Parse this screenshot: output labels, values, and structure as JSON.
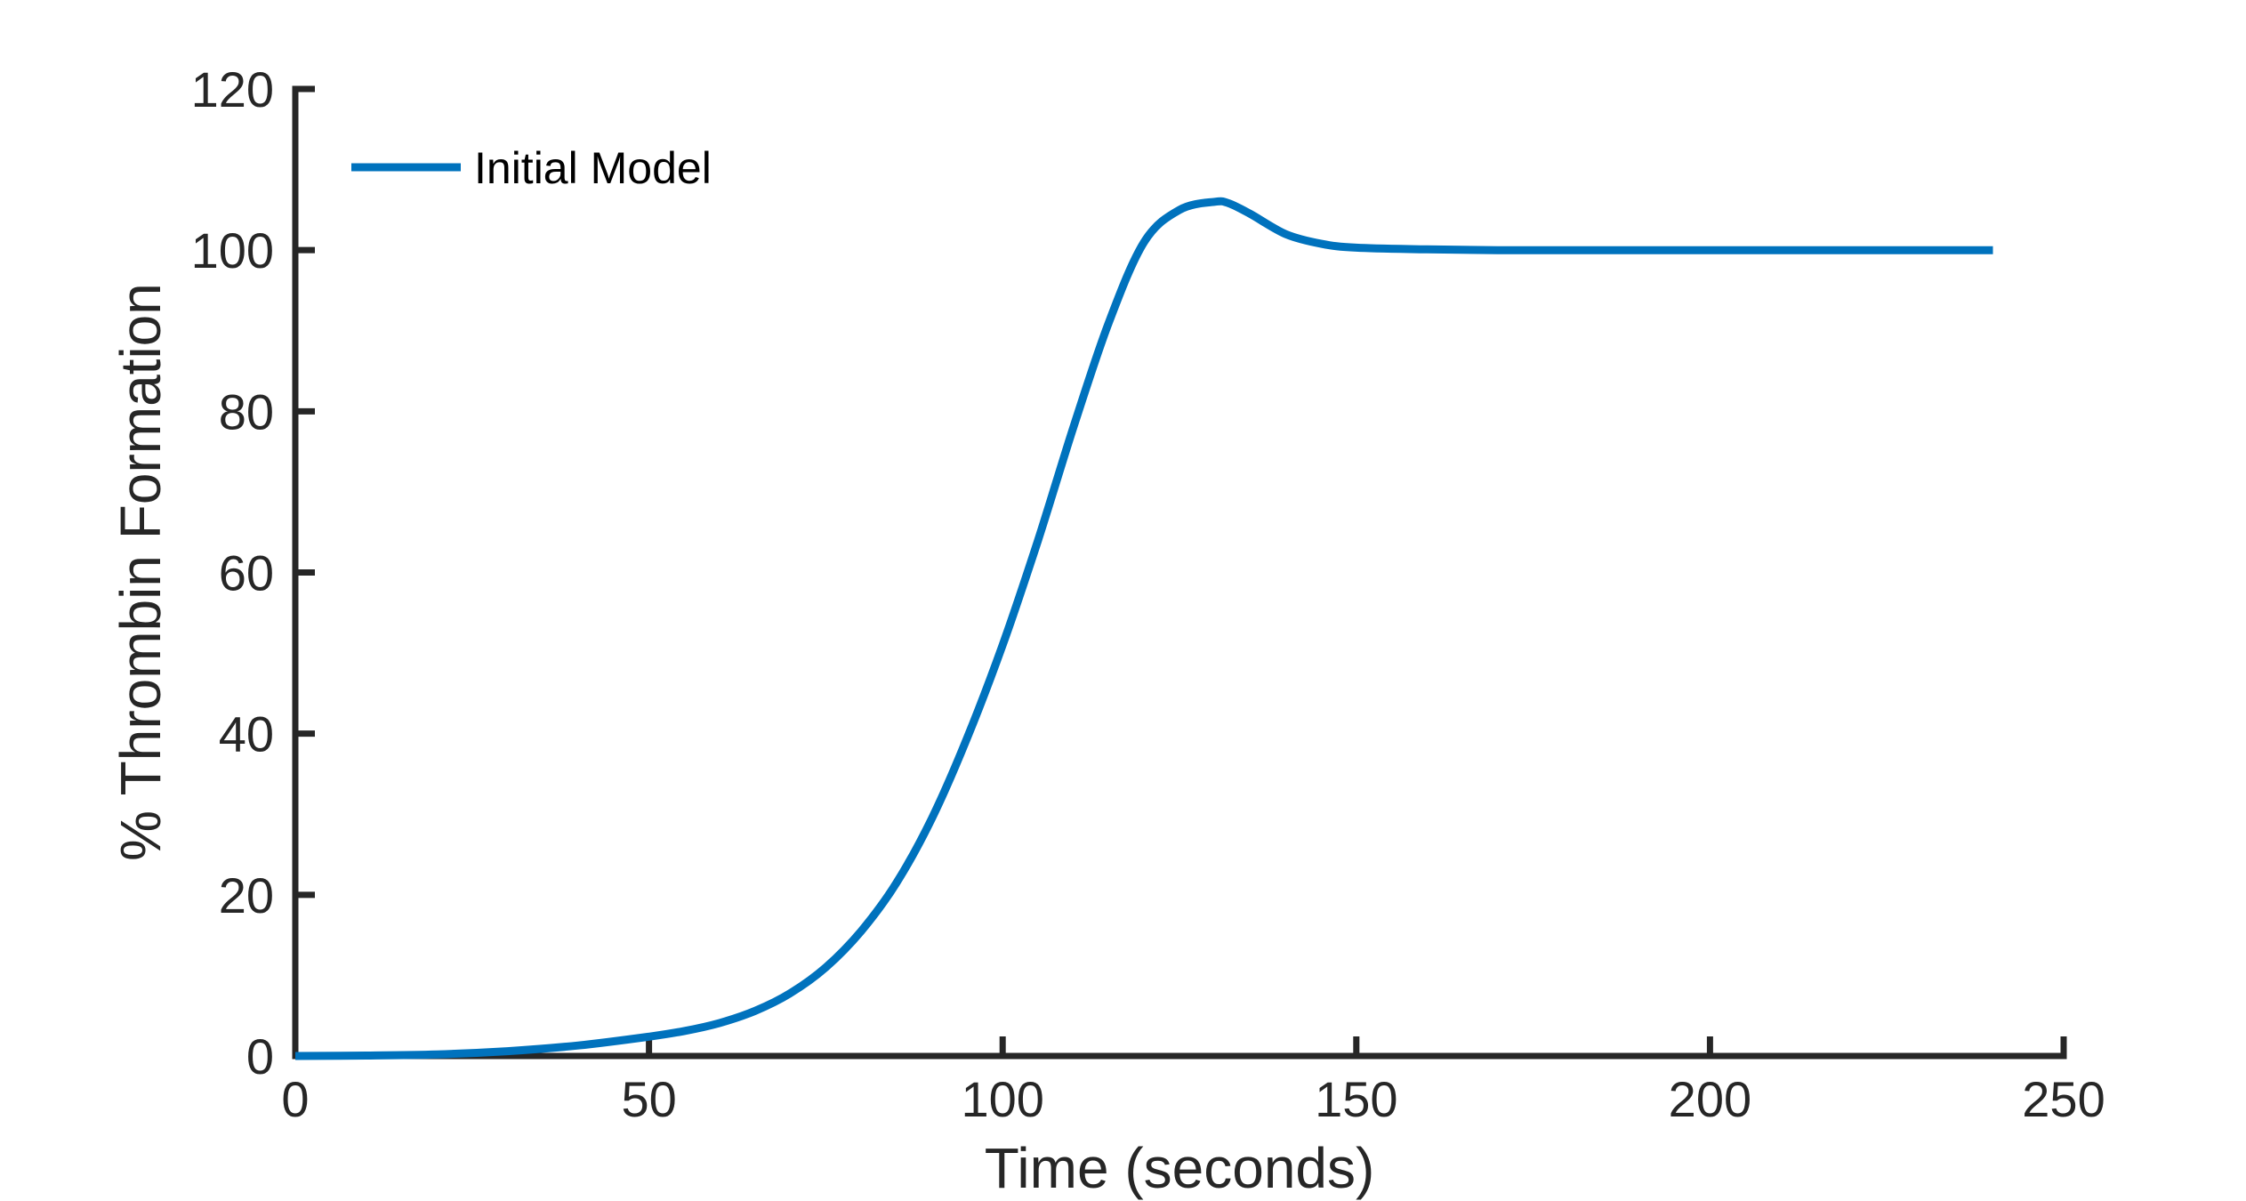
{
  "chart_data": {
    "type": "line",
    "xlabel": "Time (seconds)",
    "ylabel": "% Thrombin Formation",
    "xlim": [
      0,
      250
    ],
    "ylim": [
      0,
      120
    ],
    "xticks": [
      0,
      50,
      100,
      150,
      200,
      250
    ],
    "yticks": [
      0,
      20,
      40,
      60,
      80,
      100,
      120
    ],
    "xtick_labels": [
      "0",
      "50",
      "100",
      "150",
      "200",
      "250"
    ],
    "ytick_labels": [
      "0",
      "20",
      "40",
      "60",
      "80",
      "100",
      "120"
    ],
    "grid": false,
    "legend_position": "top-left",
    "series": [
      {
        "name": "Initial Model",
        "color": "#0072BD",
        "x": [
          0,
          10,
          20,
          30,
          40,
          50,
          55,
          60,
          65,
          70,
          75,
          80,
          85,
          90,
          95,
          100,
          105,
          110,
          115,
          120,
          125,
          130,
          132,
          135,
          140,
          145,
          150,
          160,
          170,
          180,
          190,
          200,
          210,
          220,
          230,
          240
        ],
        "y": [
          0,
          0.05,
          0.2,
          0.6,
          1.3,
          2.4,
          3.1,
          4.1,
          5.6,
          7.8,
          11,
          15.5,
          21.5,
          29.5,
          39.5,
          51,
          64,
          78,
          91,
          101,
          105,
          106,
          105.8,
          104.5,
          102,
          100.8,
          100.3,
          100.1,
          100,
          100,
          100,
          100,
          100,
          100,
          100,
          100
        ]
      }
    ]
  }
}
